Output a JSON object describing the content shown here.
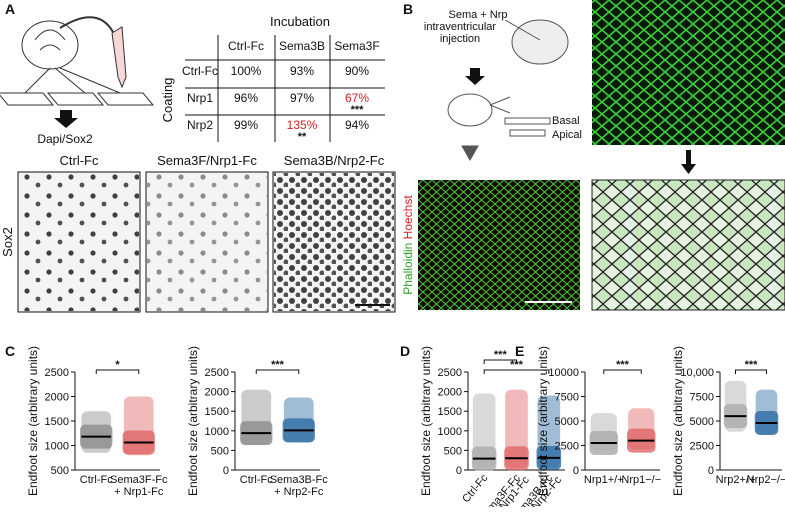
{
  "panels": {
    "A": "A",
    "B": "B",
    "C": "C",
    "D": "D",
    "E": "E"
  },
  "panel_a": {
    "stain": "Dapi/Sox2",
    "table": {
      "column_group": "Incubation",
      "row_group": "Coating",
      "columns": [
        "Ctrl-Fc",
        "Sema3B",
        "Sema3F"
      ],
      "rows": [
        {
          "name": "Ctrl-Fc",
          "cells": [
            "100%",
            "93%",
            "90%"
          ]
        },
        {
          "name": "Nrp1",
          "cells": [
            "96%",
            "97%",
            "67%"
          ]
        },
        {
          "name": "Nrp2",
          "cells": [
            "99%",
            "135%",
            "94%"
          ]
        }
      ],
      "significance": {
        "nrp1_sema3f": "***",
        "nrp2_sema3b": "**"
      }
    },
    "images": [
      "Ctrl-Fc",
      "Sema3F/Nrp1-Fc",
      "Sema3B/Nrp2-Fc"
    ],
    "image_row_label": "Sox2"
  },
  "panel_b": {
    "injection": [
      "Sema + Nrp",
      "intraventricular",
      "injection"
    ],
    "basal": "Basal",
    "apical": "Apical",
    "stain_1": "Phalloidin",
    "stain_2": "Hoechst"
  },
  "chart_data": [
    {
      "type": "dotplot",
      "y_label": "Endfoot size (arbitrary units)",
      "categories": [
        [
          "Ctrl-Fc"
        ],
        [
          "Sema3F-Fc",
          "+ Nrp1-Fc"
        ]
      ],
      "values": [
        1180,
        1060
      ],
      "ranges": [
        [
          850,
          1700
        ],
        [
          800,
          2000
        ]
      ],
      "colors": [
        "#8c8c8c",
        "#e06666"
      ],
      "ylim": [
        500,
        2500
      ],
      "yticks": [
        500,
        1000,
        1500,
        2000,
        2500
      ],
      "annotations": [
        {
          "text": "*",
          "groups": [
            0,
            1
          ]
        }
      ]
    },
    {
      "type": "dotplot",
      "y_label": "Endfoot size (arbitrary units)",
      "categories": [
        [
          "Ctrl-Fc"
        ],
        [
          "Sema3B-Fc",
          "+ Nrp2-Fc"
        ]
      ],
      "values": [
        940,
        1010
      ],
      "ranges": [
        [
          650,
          2050
        ],
        [
          700,
          1850
        ]
      ],
      "colors": [
        "#8c8c8c",
        "#2e6da4"
      ],
      "ylim": [
        0,
        2500
      ],
      "yticks": [
        0,
        500,
        1000,
        1500,
        2000,
        2500
      ],
      "annotations": [
        {
          "text": "***",
          "groups": [
            0,
            1
          ]
        }
      ]
    },
    {
      "type": "dotplot",
      "y_label": "Endfoot size (arbitrary units)",
      "rotated": true,
      "categories": [
        [
          "Ctrl-Fc"
        ],
        [
          "Sema3F-Fc",
          "+ Nrp1-Fc"
        ],
        [
          "Sema3B-Fc",
          "+ Nrp2-Fc"
        ]
      ],
      "values": [
        290,
        300,
        310
      ],
      "ranges": [
        [
          50,
          1950
        ],
        [
          50,
          2050
        ],
        [
          50,
          1900
        ]
      ],
      "colors": [
        "#aaaaaa",
        "#e06666",
        "#2e6da4"
      ],
      "ylim": [
        0,
        2500
      ],
      "yticks": [
        0,
        500,
        1000,
        1500,
        2000,
        2500
      ],
      "annotations": [
        {
          "text": "***",
          "groups": [
            0,
            1
          ]
        },
        {
          "text": "***",
          "groups": [
            0,
            2
          ]
        }
      ]
    },
    {
      "type": "dotplot",
      "y_label": "Endfoot size (arbitrary units)",
      "categories": [
        [
          "Nrp1+/+"
        ],
        [
          "Nrp1−/−"
        ]
      ],
      "values": [
        2750,
        3000
      ],
      "ranges": [
        [
          2000,
          5800
        ],
        [
          2100,
          6300
        ]
      ],
      "colors": [
        "#aaaaaa",
        "#e06666"
      ],
      "ylim": [
        0,
        10000
      ],
      "yticks": [
        0,
        2500,
        5000,
        7500,
        10000
      ],
      "annotations": [
        {
          "text": "***",
          "groups": [
            0,
            1
          ]
        }
      ]
    },
    {
      "type": "dotplot",
      "y_label": "Endfoot size (arbitrary units)",
      "categories": [
        [
          "Nrp2+/+"
        ],
        [
          "Nrp2−/−"
        ]
      ],
      "values": [
        5500,
        4800
      ],
      "ranges": [
        [
          3900,
          9100
        ],
        [
          3600,
          8200
        ]
      ],
      "colors": [
        "#aaaaaa",
        "#2e6da4"
      ],
      "ylim": [
        0,
        10000
      ],
      "yticks": [
        0,
        {
          "value": 2500,
          "label": "2500"
        },
        {
          "value": 5000,
          "label": "5000"
        },
        {
          "value": 7500,
          "label": "7500"
        },
        {
          "value": 10000,
          "label": "10,000"
        }
      ],
      "annotations": [
        {
          "text": "***",
          "groups": [
            0,
            1
          ]
        }
      ]
    }
  ]
}
